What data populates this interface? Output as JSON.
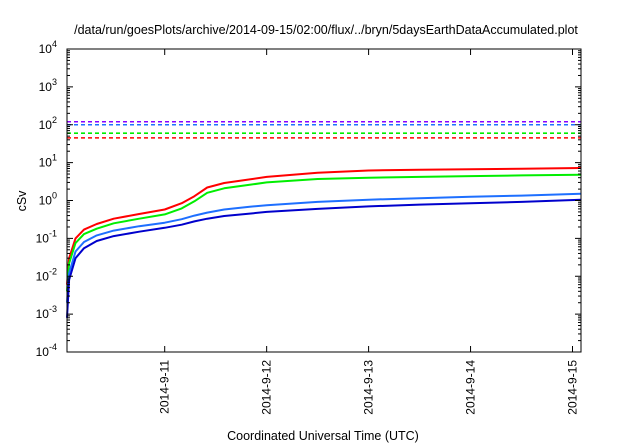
{
  "chart_data": {
    "type": "line",
    "title": "/data/run/goesPlots/archive/2014-09-15/02:00/flux/../bryn/5daysEarthDataAccumulated.plot",
    "xlabel": "Coordinated Universal Time (UTC)",
    "ylabel": "cSv",
    "yscale": "log",
    "ylim": [
      0.0001,
      10000
    ],
    "xlim": [
      "2014-09-10 01:00",
      "2014-09-15 02:00"
    ],
    "x_ticks": [
      "2014-9-11",
      "2014-9-12",
      "2014-9-13",
      "2014-9-14",
      "2014-9-15"
    ],
    "y_ticks": [
      {
        "base": "10",
        "exp": "-4",
        "value": 0.0001
      },
      {
        "base": "10",
        "exp": "-3",
        "value": 0.001
      },
      {
        "base": "10",
        "exp": "-2",
        "value": 0.01
      },
      {
        "base": "10",
        "exp": "-1",
        "value": 0.1
      },
      {
        "base": "10",
        "exp": "0",
        "value": 1
      },
      {
        "base": "10",
        "exp": "1",
        "value": 10
      },
      {
        "base": "10",
        "exp": "2",
        "value": 100
      },
      {
        "base": "10",
        "exp": "3",
        "value": 1000
      },
      {
        "base": "10",
        "exp": "4",
        "value": 10000
      }
    ],
    "grid": false,
    "series": [
      {
        "color": "#ff0000",
        "x": [
          "2014-09-10 01:00",
          "2014-09-10 01:30",
          "2014-09-10 03:00",
          "2014-09-10 05:00",
          "2014-09-10 08:00",
          "2014-09-10 12:00",
          "2014-09-10 18:00",
          "2014-09-11 00:00",
          "2014-09-11 04:00",
          "2014-09-11 07:00",
          "2014-09-11 10:00",
          "2014-09-11 14:00",
          "2014-09-11 20:00",
          "2014-09-12 00:00",
          "2014-09-12 12:00",
          "2014-09-13 00:00",
          "2014-09-13 12:00",
          "2014-09-14 00:00",
          "2014-09-14 12:00",
          "2014-09-15 02:00"
        ],
        "values": [
          0.006,
          0.03,
          0.1,
          0.17,
          0.24,
          0.33,
          0.44,
          0.58,
          0.85,
          1.3,
          2.2,
          2.9,
          3.6,
          4.2,
          5.4,
          6.2,
          6.5,
          6.7,
          6.9,
          7.2
        ]
      },
      {
        "color": "#00ee00",
        "x": [
          "2014-09-10 01:00",
          "2014-09-10 01:30",
          "2014-09-10 03:00",
          "2014-09-10 05:00",
          "2014-09-10 08:00",
          "2014-09-10 12:00",
          "2014-09-10 18:00",
          "2014-09-11 00:00",
          "2014-09-11 04:00",
          "2014-09-11 07:00",
          "2014-09-11 10:00",
          "2014-09-11 14:00",
          "2014-09-11 20:00",
          "2014-09-12 00:00",
          "2014-09-12 12:00",
          "2014-09-13 00:00",
          "2014-09-13 12:00",
          "2014-09-14 00:00",
          "2014-09-14 12:00",
          "2014-09-15 02:00"
        ],
        "values": [
          0.004,
          0.022,
          0.075,
          0.13,
          0.18,
          0.25,
          0.33,
          0.43,
          0.62,
          0.95,
          1.6,
          2.1,
          2.6,
          3.0,
          3.7,
          4.0,
          4.2,
          4.4,
          4.6,
          4.8
        ]
      },
      {
        "color": "#1e6fff",
        "x": [
          "2014-09-10 01:00",
          "2014-09-10 01:30",
          "2014-09-10 03:00",
          "2014-09-10 05:00",
          "2014-09-10 08:00",
          "2014-09-10 12:00",
          "2014-09-10 18:00",
          "2014-09-11 00:00",
          "2014-09-11 04:00",
          "2014-09-11 07:00",
          "2014-09-11 10:00",
          "2014-09-11 14:00",
          "2014-09-11 20:00",
          "2014-09-12 00:00",
          "2014-09-12 12:00",
          "2014-09-13 00:00",
          "2014-09-13 12:00",
          "2014-09-14 00:00",
          "2014-09-14 12:00",
          "2014-09-15 02:00"
        ],
        "values": [
          0.002,
          0.012,
          0.045,
          0.08,
          0.12,
          0.16,
          0.21,
          0.26,
          0.32,
          0.4,
          0.48,
          0.58,
          0.68,
          0.75,
          0.92,
          1.05,
          1.15,
          1.25,
          1.35,
          1.5
        ]
      },
      {
        "color": "#0000cc",
        "x": [
          "2014-09-10 01:00",
          "2014-09-10 01:30",
          "2014-09-10 03:00",
          "2014-09-10 05:00",
          "2014-09-10 08:00",
          "2014-09-10 12:00",
          "2014-09-10 18:00",
          "2014-09-11 00:00",
          "2014-09-11 04:00",
          "2014-09-11 07:00",
          "2014-09-11 10:00",
          "2014-09-11 14:00",
          "2014-09-11 20:00",
          "2014-09-12 00:00",
          "2014-09-12 12:00",
          "2014-09-13 00:00",
          "2014-09-13 12:00",
          "2014-09-14 00:00",
          "2014-09-14 12:00",
          "2014-09-15 02:00"
        ],
        "values": [
          0.0008,
          0.008,
          0.03,
          0.055,
          0.085,
          0.115,
          0.15,
          0.19,
          0.23,
          0.28,
          0.33,
          0.39,
          0.45,
          0.5,
          0.6,
          0.7,
          0.78,
          0.85,
          0.92,
          1.05
        ]
      }
    ],
    "threshold_lines": [
      {
        "color": "#8a00ff",
        "value": 120
      },
      {
        "color": "#1e6fff",
        "value": 100
      },
      {
        "color": "#00ee00",
        "value": 60
      },
      {
        "color": "#ff0000",
        "value": 45
      }
    ]
  }
}
